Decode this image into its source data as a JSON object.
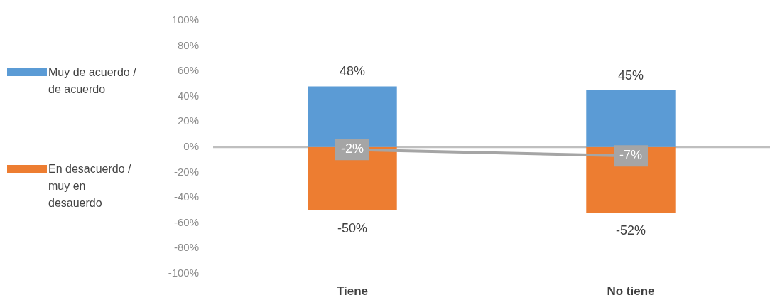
{
  "chart_data": {
    "type": "bar",
    "stacked": true,
    "categories": [
      "Tiene",
      "No tiene"
    ],
    "series": [
      {
        "name": "Muy de acuerdo / de acuerdo",
        "color": "#5b9bd5",
        "values": [
          48,
          45
        ]
      },
      {
        "name": "En desacuerdo / muy en desauerdo",
        "color": "#ed7d31",
        "values": [
          -50,
          -52
        ]
      },
      {
        "type": "line",
        "color": "#a5a5a5",
        "values": [
          -2,
          -7
        ]
      }
    ],
    "ylim": [
      -100,
      100
    ],
    "yticks": [
      {
        "value": -100,
        "label": "-100%"
      },
      {
        "value": -80,
        "label": "-80%"
      },
      {
        "value": -60,
        "label": "-60%"
      },
      {
        "value": -40,
        "label": "-40%"
      },
      {
        "value": -20,
        "label": "-20%"
      },
      {
        "value": 0,
        "label": "0%"
      },
      {
        "value": 20,
        "label": "20%"
      },
      {
        "value": 40,
        "label": "40%"
      },
      {
        "value": 60,
        "label": "60%"
      },
      {
        "value": 80,
        "label": "80%"
      },
      {
        "value": 100,
        "label": "100%"
      }
    ],
    "value_labels": [
      [
        "48%",
        "45%"
      ],
      [
        "-50%",
        "-52%"
      ],
      [
        "-2%",
        "-7%"
      ]
    ],
    "ref_lines": [
      {
        "axis": "y",
        "value": 0,
        "color": "#bfbfbf"
      }
    ],
    "grid": false,
    "legend": "left",
    "marker": "none"
  }
}
